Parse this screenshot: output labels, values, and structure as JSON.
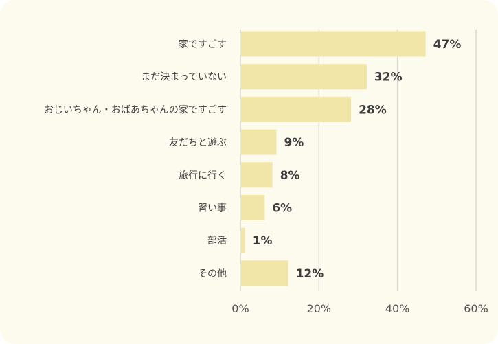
{
  "colors": {
    "bar": "#f1e6a8",
    "background": "#fdfbee",
    "grid": "#d9d9d4"
  },
  "chart_data": {
    "type": "bar",
    "orientation": "horizontal",
    "categories": [
      "家ですごす",
      "まだ決まっていない",
      "おじいちゃん・おばあちゃんの家ですごす",
      "友だちと遊ぶ",
      "旅行に行く",
      "習い事",
      "部活",
      "その他"
    ],
    "values": [
      47,
      32,
      28,
      9,
      8,
      6,
      1,
      12
    ],
    "value_labels": [
      "47%",
      "32%",
      "28%",
      "9%",
      "8%",
      "6%",
      "1%",
      "12%"
    ],
    "xlim": [
      0,
      60
    ],
    "xticks": [
      0,
      20,
      40,
      60
    ],
    "xtick_labels": [
      "0%",
      "20%",
      "40%",
      "60%"
    ],
    "grid": true,
    "legend": "none"
  }
}
